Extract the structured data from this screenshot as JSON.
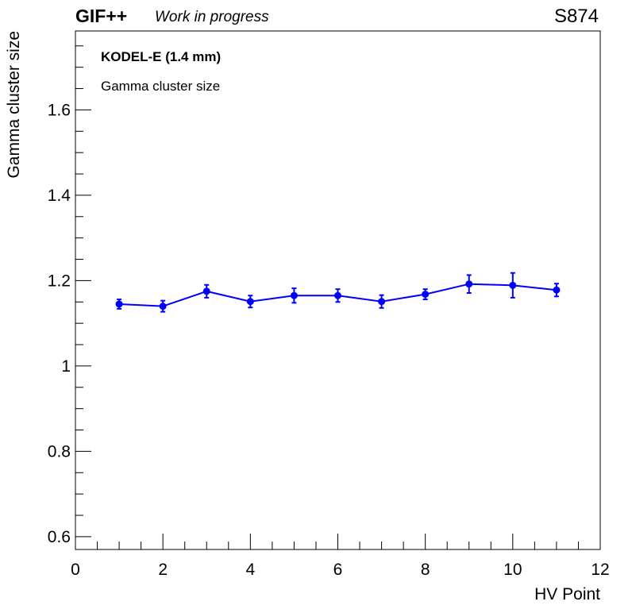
{
  "header": {
    "experiment": "GIF++",
    "status": "Work in progress",
    "run_id": "S874"
  },
  "chart_data": {
    "type": "line",
    "xlabel": "HV Point",
    "ylabel": "Gamma cluster size",
    "xlim": [
      0,
      12
    ],
    "ylim": [
      0.57,
      1.785
    ],
    "x_ticks": [
      "0",
      "2",
      "4",
      "6",
      "8",
      "10",
      "12"
    ],
    "y_ticks": [
      "0.6",
      "0.8",
      "1",
      "1.2",
      "1.4",
      "1.6"
    ],
    "annotations": [
      "KODEL-E (1.4 mm)",
      "Gamma cluster size"
    ],
    "grid": false,
    "legend": "none",
    "series": [
      {
        "color": "#0000ff",
        "x": [
          1,
          2,
          3,
          4,
          5,
          6,
          7,
          8,
          9,
          10,
          11
        ],
        "y": [
          1.145,
          1.14,
          1.175,
          1.151,
          1.165,
          1.165,
          1.151,
          1.168,
          1.192,
          1.189,
          1.178
        ],
        "err": [
          0.011,
          0.013,
          0.015,
          0.014,
          0.017,
          0.015,
          0.015,
          0.012,
          0.021,
          0.029,
          0.015
        ]
      }
    ]
  }
}
